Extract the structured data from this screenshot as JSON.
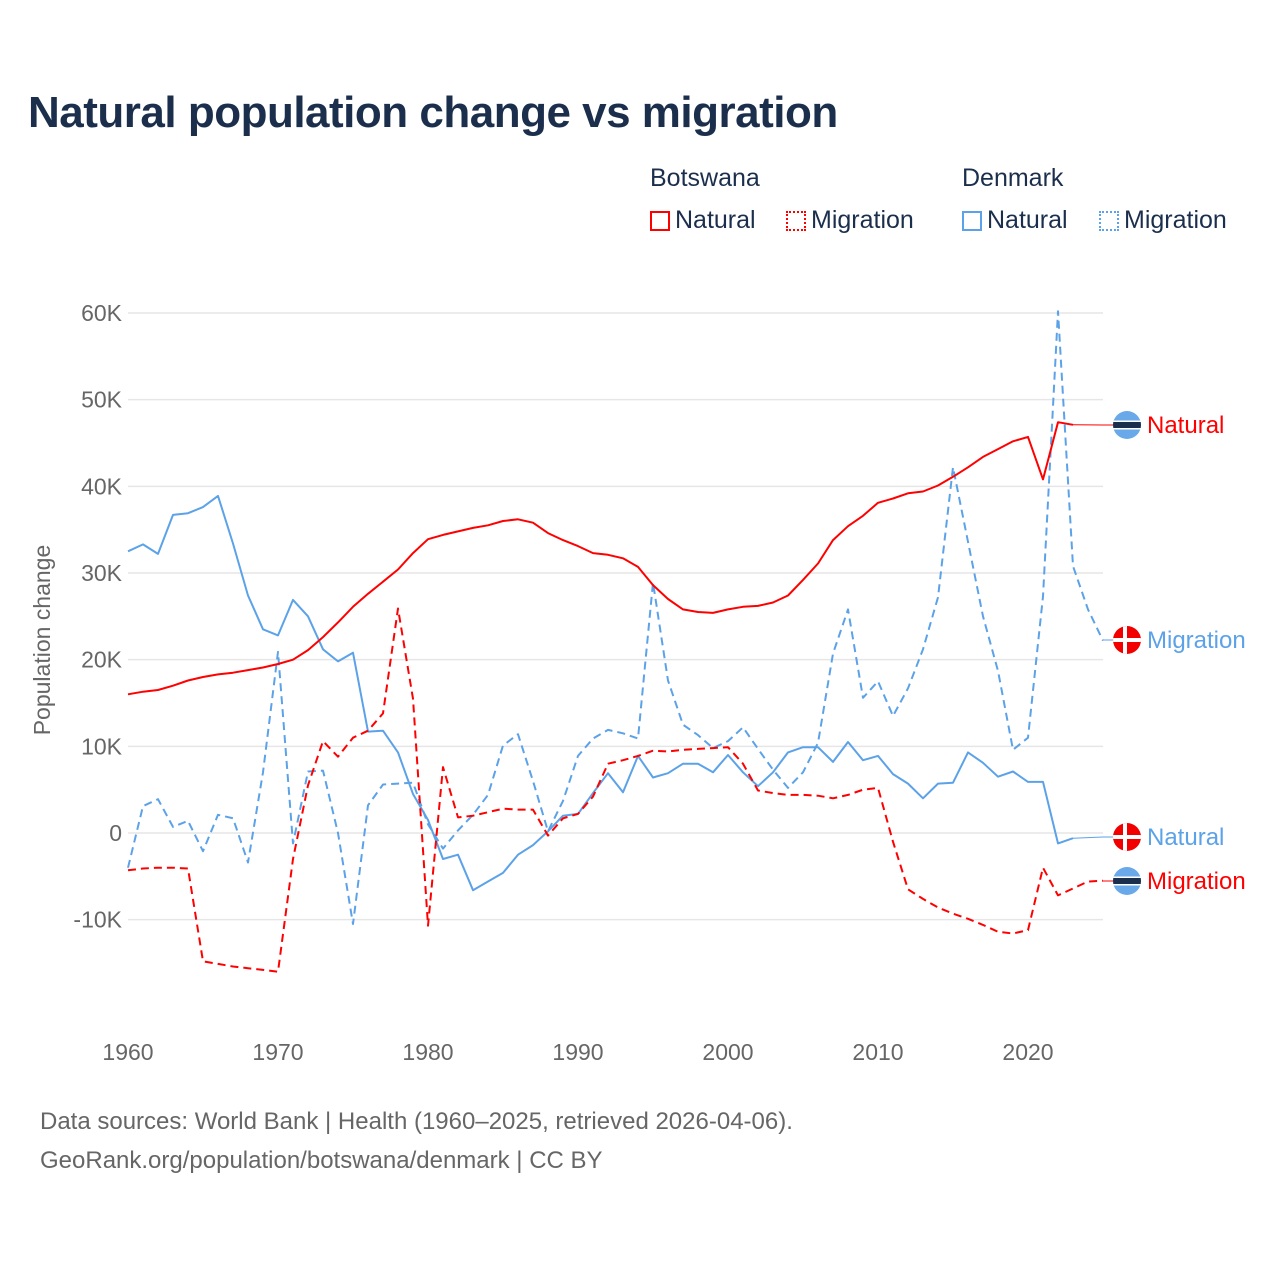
{
  "chart_data": {
    "type": "line",
    "title": "Natural population change vs migration",
    "ylabel": "Population change",
    "xlabel": "",
    "ylim": [
      -20000,
      60000
    ],
    "xlim": [
      1960,
      2025
    ],
    "grid": true,
    "y_ticks": [
      {
        "v": 60000,
        "label": "60K"
      },
      {
        "v": 50000,
        "label": "50K"
      },
      {
        "v": 40000,
        "label": "40K"
      },
      {
        "v": 30000,
        "label": "30K"
      },
      {
        "v": 20000,
        "label": "20K"
      },
      {
        "v": 10000,
        "label": "10K"
      },
      {
        "v": 0,
        "label": "0"
      },
      {
        "v": -10000,
        "label": "-10K"
      }
    ],
    "x_ticks": [
      {
        "v": 1960,
        "label": "1960"
      },
      {
        "v": 1970,
        "label": "1970"
      },
      {
        "v": 1980,
        "label": "1980"
      },
      {
        "v": 1990,
        "label": "1990"
      },
      {
        "v": 2000,
        "label": "2000"
      },
      {
        "v": 2010,
        "label": "2010"
      },
      {
        "v": 2020,
        "label": "2020"
      }
    ],
    "legend": {
      "placement": "top-right",
      "groups": [
        {
          "name": "Botswana",
          "items": [
            "Natural",
            "Migration"
          ]
        },
        {
          "name": "Denmark",
          "items": [
            "Natural",
            "Migration"
          ]
        }
      ]
    },
    "series": [
      {
        "country": "Botswana",
        "name": "Natural",
        "color": "#ff0000",
        "dashed": false,
        "flag": "botswana",
        "end_label": "Natural",
        "start": 1960,
        "values": [
          16000,
          16300,
          16500,
          17000,
          17600,
          18000,
          18300,
          18500,
          18800,
          19100,
          19500,
          20000,
          21100,
          22600,
          24300,
          26100,
          27600,
          29000,
          30400,
          32300,
          33900,
          34400,
          34800,
          35200,
          35500,
          36000,
          36200,
          35800,
          34600,
          33800,
          33100,
          32300,
          32100,
          31700,
          30700,
          28600,
          27000,
          25800,
          25500,
          25400,
          25800,
          26100,
          26200,
          26600,
          27400,
          29200,
          31100,
          33800,
          35400,
          36600,
          38100,
          38600,
          39200,
          39400,
          40100,
          41100,
          42200,
          43400,
          44300,
          45200,
          45700,
          40800,
          47400,
          47100
        ]
      },
      {
        "country": "Botswana",
        "name": "Migration",
        "color": "#ff0000",
        "dashed": true,
        "flag": "botswana",
        "end_label": "Migration",
        "start": 1960,
        "values": [
          -4300,
          -4100,
          -4000,
          -4000,
          -4100,
          -14800,
          -15100,
          -15400,
          -15600,
          -15800,
          -16000,
          -3000,
          5500,
          10600,
          8800,
          11000,
          11800,
          13800,
          25900,
          15500,
          -10700,
          7600,
          1800,
          2000,
          2400,
          2800,
          2700,
          2700,
          -300,
          1700,
          2200,
          4200,
          8000,
          8400,
          8900,
          9500,
          9400,
          9600,
          9700,
          9800,
          9900,
          8000,
          4900,
          4600,
          4400,
          4400,
          4300,
          4000,
          4400,
          5000,
          5200,
          -1000,
          -6500,
          -7600,
          -8600,
          -9300,
          -9900,
          -10600,
          -11400,
          -11600,
          -11200,
          -4000,
          -7200,
          -6400,
          -5600,
          -5500
        ]
      },
      {
        "country": "Denmark",
        "name": "Natural",
        "color": "#5ca2e8",
        "dashed": false,
        "flag": "denmark",
        "end_label": "Natural",
        "start": 1960,
        "values": [
          32500,
          33300,
          32200,
          36700,
          36900,
          37600,
          38900,
          33400,
          27400,
          23500,
          22800,
          26900,
          25000,
          21200,
          19800,
          20800,
          11700,
          11800,
          9300,
          4500,
          1500,
          -3000,
          -2500,
          -6600,
          -5600,
          -4600,
          -2500,
          -1400,
          200,
          2000,
          2200,
          4600,
          6900,
          4700,
          8900,
          6400,
          6900,
          8000,
          8000,
          7000,
          9000,
          7000,
          5400,
          7000,
          9300,
          9900,
          9900,
          8200,
          10500,
          8400,
          8900,
          6800,
          5700,
          4000,
          5700,
          5800,
          9300,
          8100,
          6500,
          7100,
          5900,
          5900,
          -1200,
          -600
        ]
      },
      {
        "country": "Denmark",
        "name": "Migration",
        "color": "#5ca2e8",
        "dashed": true,
        "flag": "denmark",
        "end_label": "Migration",
        "start": 1960,
        "values": [
          -4000,
          3100,
          3900,
          700,
          1400,
          -2100,
          2100,
          1700,
          -3400,
          7000,
          20900,
          -1200,
          7100,
          7200,
          0,
          -10500,
          3200,
          5600,
          5700,
          5800,
          1000,
          -1800,
          300,
          2100,
          4400,
          10100,
          11400,
          6000,
          200,
          3700,
          8900,
          10900,
          11900,
          11500,
          10900,
          28900,
          17600,
          12500,
          11300,
          9800,
          10600,
          12200,
          9700,
          7300,
          5200,
          7000,
          10400,
          20700,
          25800,
          15600,
          17500,
          13500,
          16700,
          21200,
          27200,
          42200,
          33600,
          25000,
          18700,
          9600,
          11000,
          27300,
          60200,
          30800,
          25800,
          22200
        ]
      }
    ]
  },
  "footer": {
    "line1": "Data sources: World Bank | Health (1960–2025, retrieved 2026-04-06).",
    "line2": "GeoRank.org/population/botswana/denmark | CC BY"
  }
}
